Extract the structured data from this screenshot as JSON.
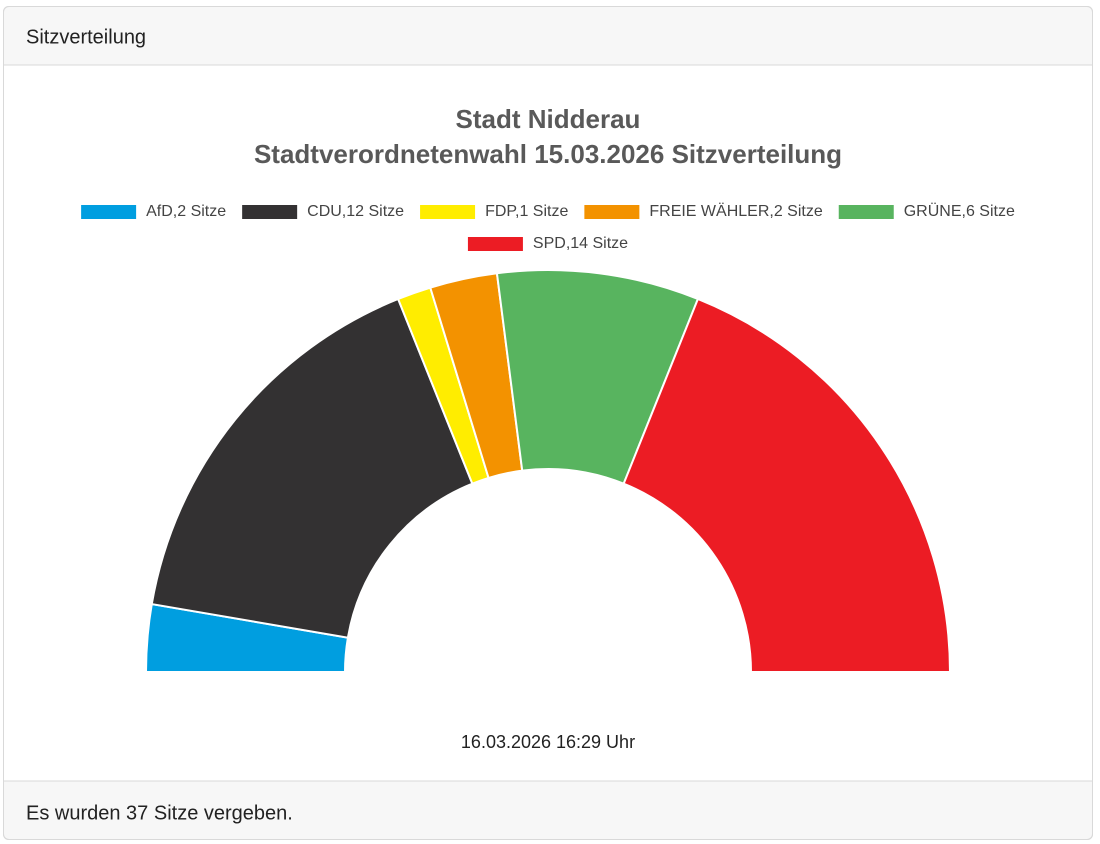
{
  "header": "Sitzverteilung",
  "footer": "Es wurden 37 Sitze vergeben.",
  "chart_data": {
    "type": "half-donut",
    "title": "Stadt Nidderau",
    "subtitle": "Stadtverordnetenwahl 15.03.2026 Sitzverteilung",
    "categories": [
      "AfD,2 Sitze",
      "CDU,12 Sitze",
      "FDP,1 Sitze",
      "FREIE WÄHLER,2 Sitze",
      "GRÜNE,6 Sitze",
      "SPD,14 Sitze"
    ],
    "values": [
      2,
      12,
      1,
      2,
      6,
      14
    ],
    "colors": [
      "#009ee0",
      "#333132",
      "#ffed00",
      "#f39200",
      "#58b45f",
      "#ec1c24"
    ],
    "annotation": "16.03.2026 16:29 Uhr"
  }
}
